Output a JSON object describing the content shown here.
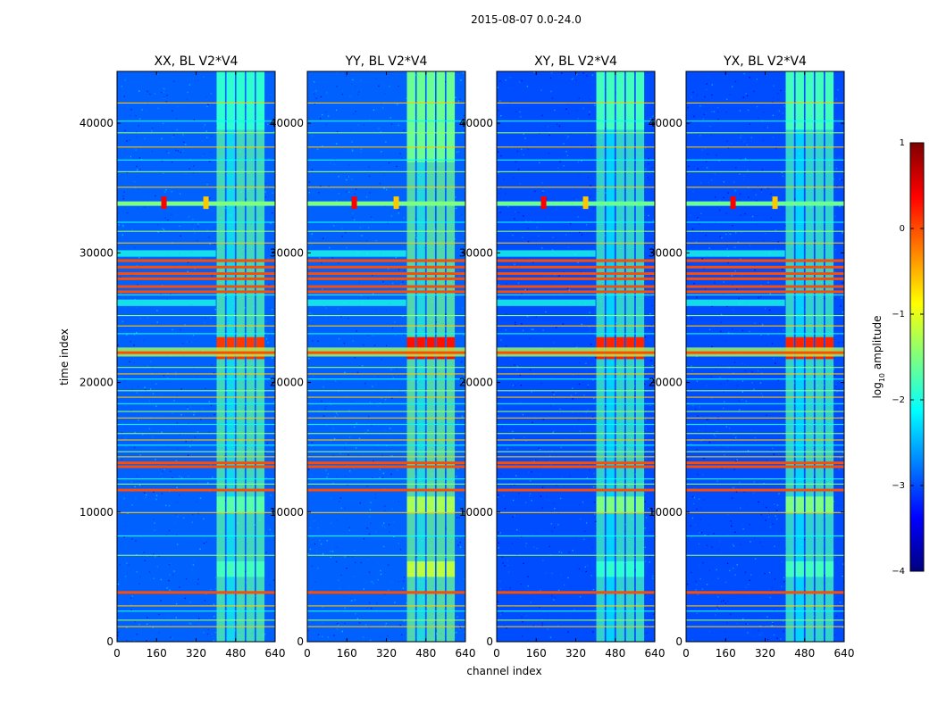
{
  "figure": {
    "title": "2015-08-07 0.0-24.0"
  },
  "colors": {
    "jet": [
      "#00007f",
      "#0000ff",
      "#007fff",
      "#00ffff",
      "#7fff7f",
      "#ffff00",
      "#ff7f00",
      "#ff0000",
      "#7f0000"
    ],
    "frame": "#000000",
    "background": "#ffffff"
  },
  "chart_data": [
    {
      "type": "heatmap",
      "title": "XX, BL V2*V4",
      "xlabel": "",
      "ylabel": "time index",
      "xlim": [
        0,
        640
      ],
      "ylim": [
        0,
        44000
      ],
      "xticks": [
        0,
        160,
        320,
        480,
        640
      ],
      "yticks": [
        0,
        10000,
        20000,
        30000,
        40000
      ],
      "background_level": -2.9,
      "bright_channel_band": [
        400,
        600
      ],
      "bright_channel_level": -1.7,
      "bright_blocks": [
        {
          "t": [
            21800,
            23500
          ],
          "level": 0.1
        },
        {
          "t": [
            9900,
            11200
          ],
          "level": -1.7
        },
        {
          "t": [
            5000,
            6200
          ],
          "level": -1.8
        },
        {
          "t": [
            39500,
            44000
          ],
          "level": -1.9
        }
      ],
      "flag_lines": [
        3800,
        11700,
        13500,
        13800,
        22300,
        27000,
        27400,
        28000,
        28400,
        28900,
        29400
      ],
      "interference_line": {
        "t": 33800,
        "level": -1.5,
        "peaks": [
          {
            "ch": 190,
            "level": 0.4
          },
          {
            "ch": 360,
            "level": -0.6
          }
        ]
      }
    },
    {
      "type": "heatmap",
      "title": "YY, BL V2*V4",
      "xlabel": "",
      "ylabel": "",
      "xlim": [
        0,
        640
      ],
      "ylim": [
        0,
        44000
      ],
      "xticks": [
        0,
        160,
        320,
        480,
        640
      ],
      "yticks": [
        0,
        10000,
        20000,
        30000,
        40000
      ],
      "background_level": -2.9,
      "bright_channel_band": [
        400,
        600
      ],
      "bright_channel_level": -1.6,
      "bright_blocks": [
        {
          "t": [
            21800,
            23500
          ],
          "level": 0.3
        },
        {
          "t": [
            9900,
            11200
          ],
          "level": -1.3
        },
        {
          "t": [
            5000,
            6200
          ],
          "level": -1.2
        },
        {
          "t": [
            37000,
            44000
          ],
          "level": -1.6
        }
      ],
      "flag_lines": [
        3800,
        11700,
        13500,
        13800,
        22300,
        27000,
        27400,
        28000,
        28400,
        28900,
        29400
      ],
      "interference_line": {
        "t": 33800,
        "level": -1.5,
        "peaks": [
          {
            "ch": 190,
            "level": 0.4
          },
          {
            "ch": 360,
            "level": -0.6
          }
        ]
      }
    },
    {
      "type": "heatmap",
      "title": "XY, BL V2*V4",
      "xlabel": "channel index",
      "ylabel": "",
      "xlim": [
        0,
        640
      ],
      "ylim": [
        0,
        44000
      ],
      "xticks": [
        0,
        160,
        320,
        480,
        640
      ],
      "yticks": [
        0,
        10000,
        20000,
        30000,
        40000
      ],
      "background_level": -3.0,
      "bright_channel_band": [
        400,
        600
      ],
      "bright_channel_level": -1.8,
      "bright_blocks": [
        {
          "t": [
            21800,
            23500
          ],
          "level": 0.2
        },
        {
          "t": [
            9900,
            11200
          ],
          "level": -1.5
        },
        {
          "t": [
            5000,
            6200
          ],
          "level": -1.9
        },
        {
          "t": [
            39500,
            44000
          ],
          "level": -1.8
        }
      ],
      "flag_lines": [
        3800,
        11700,
        13500,
        13800,
        22300,
        27000,
        27400,
        28000,
        28400,
        28900,
        29400
      ],
      "interference_line": {
        "t": 33800,
        "level": -1.6,
        "peaks": [
          {
            "ch": 190,
            "level": 0.4
          },
          {
            "ch": 360,
            "level": -0.6
          }
        ]
      }
    },
    {
      "type": "heatmap",
      "title": "YX, BL V2*V4",
      "xlabel": "",
      "ylabel": "",
      "xlim": [
        0,
        640
      ],
      "ylim": [
        0,
        44000
      ],
      "xticks": [
        0,
        160,
        320,
        480,
        640
      ],
      "yticks": [
        0,
        10000,
        20000,
        30000,
        40000
      ],
      "background_level": -3.0,
      "bright_channel_band": [
        400,
        600
      ],
      "bright_channel_level": -1.8,
      "bright_blocks": [
        {
          "t": [
            21800,
            23500
          ],
          "level": 0.2
        },
        {
          "t": [
            9900,
            11200
          ],
          "level": -1.5
        },
        {
          "t": [
            5000,
            6200
          ],
          "level": -1.8
        },
        {
          "t": [
            39500,
            44000
          ],
          "level": -1.8
        }
      ],
      "flag_lines": [
        3800,
        11700,
        13500,
        13800,
        22300,
        27000,
        27400,
        28000,
        28400,
        28900,
        29400
      ],
      "interference_line": {
        "t": 33800,
        "level": -1.6,
        "peaks": [
          {
            "ch": 190,
            "level": 0.4
          },
          {
            "ch": 360,
            "level": -0.6
          }
        ]
      }
    }
  ],
  "colorbar": {
    "label": "log10 amplitude",
    "label_main": "log",
    "label_sub": "10",
    "label_rest": " amplitude",
    "range": [
      -4,
      1
    ],
    "ticks": [
      1,
      0,
      -1,
      -2,
      -3,
      -4
    ],
    "tick_labels": [
      "1",
      "0",
      "−1",
      "−2",
      "−3",
      "−4"
    ]
  }
}
